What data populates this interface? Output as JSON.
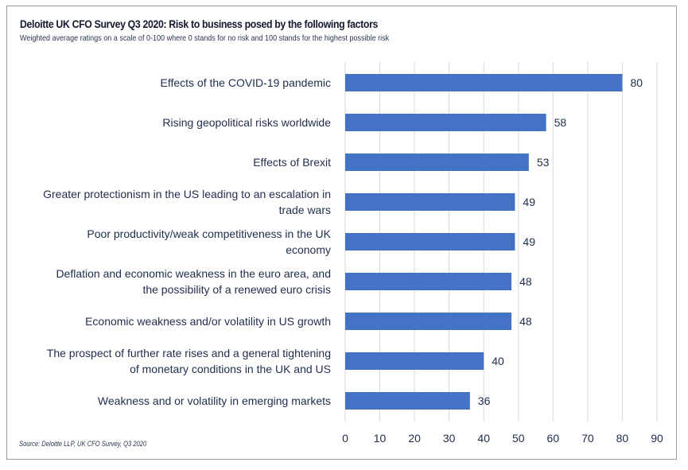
{
  "chart_data": {
    "type": "bar",
    "orientation": "horizontal",
    "title": "Deloitte UK CFO Survey Q3 2020: Risk to business posed by the following factors",
    "subtitle": "Weighted average ratings on a scale of 0-100 where 0 stands for no risk and 100 stands for the highest possible risk",
    "source": "Source: Deloitte LLP, UK CFO Survey, Q3 2020",
    "categories": [
      [
        "Effects of the COVID-19 pandemic"
      ],
      [
        "Rising geopolitical risks worldwide"
      ],
      [
        "Effects of Brexit"
      ],
      [
        "Greater protectionism in the US leading to an escalation  in",
        "trade wars"
      ],
      [
        "Poor productivity/weak competitiveness in the UK",
        "economy"
      ],
      [
        "Deflation and economic weakness in the euro area, and",
        "the possibility of a renewed euro crisis"
      ],
      [
        "Economic weakness and/or volatility in US growth"
      ],
      [
        "The prospect of further rate rises and a general tightening",
        "of monetary conditions in the UK and US"
      ],
      [
        "Weakness and or volatility in emerging markets"
      ]
    ],
    "values": [
      80,
      58,
      53,
      49,
      49,
      48,
      48,
      40,
      36
    ],
    "xlim": [
      0,
      90
    ],
    "xticks": [
      0,
      10,
      20,
      30,
      40,
      50,
      60,
      70,
      80,
      90
    ],
    "grid": "vertical",
    "data_labels": true,
    "bar_color": "#4472C4"
  }
}
